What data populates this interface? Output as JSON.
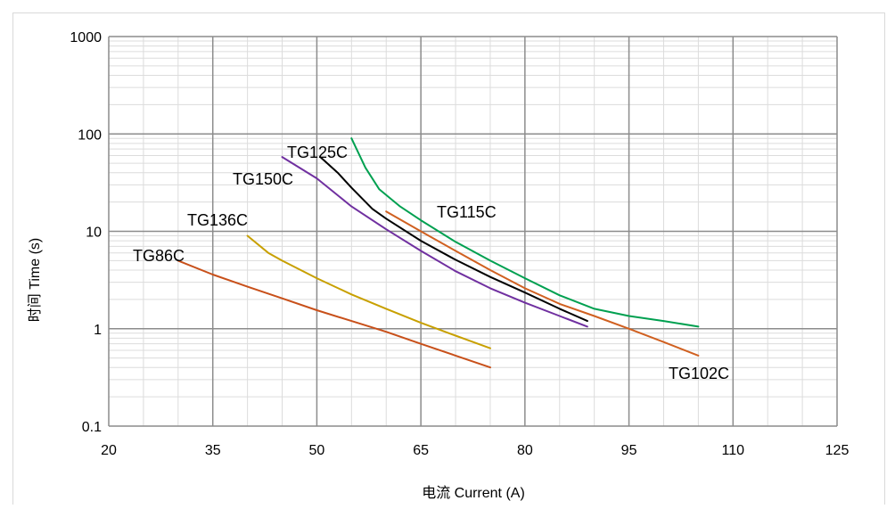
{
  "chart_data": {
    "type": "line",
    "title": "",
    "xlabel": "电流 Current (A)",
    "ylabel": "时间  Time (s)",
    "xlim": [
      20,
      125
    ],
    "ylim": [
      0.1,
      1000
    ],
    "yscale": "log",
    "grid": true,
    "x_ticks": [
      "20",
      "35",
      "50",
      "65",
      "80",
      "95",
      "110",
      "125"
    ],
    "y_ticks": [
      "0.1",
      "1",
      "10",
      "100",
      "1000"
    ],
    "colors": {
      "TG86C": "#c8501a",
      "TG136C": "#c8a000",
      "TG150C": "#7030a0",
      "TG125C": "#000000",
      "TG115C": "#00a050",
      "TG102C": "#d06020"
    },
    "series": [
      {
        "name": "TG86C",
        "x": [
          30,
          35,
          40,
          45,
          50,
          55,
          60,
          65,
          70,
          75
        ],
        "y": [
          5.0,
          3.6,
          2.7,
          2.05,
          1.55,
          1.2,
          0.93,
          0.7,
          0.53,
          0.4
        ]
      },
      {
        "name": "TG136C",
        "x": [
          40,
          43,
          45,
          50,
          55,
          60,
          65,
          70,
          75
        ],
        "y": [
          9.0,
          6.0,
          5.0,
          3.3,
          2.25,
          1.6,
          1.15,
          0.85,
          0.63
        ]
      },
      {
        "name": "TG150C",
        "x": [
          45,
          50,
          55,
          60,
          65,
          70,
          75,
          80,
          85,
          89
        ],
        "y": [
          58,
          35,
          18,
          10.5,
          6.3,
          3.9,
          2.6,
          1.85,
          1.35,
          1.05
        ]
      },
      {
        "name": "TG125C",
        "x": [
          50.5,
          53,
          55,
          58,
          60,
          65,
          70,
          75,
          80,
          85,
          89
        ],
        "y": [
          58,
          40,
          28,
          17,
          13.5,
          8.0,
          5.1,
          3.4,
          2.35,
          1.6,
          1.2
        ]
      },
      {
        "name": "TG115C",
        "x": [
          55,
          57,
          59,
          62,
          65,
          70,
          75,
          80,
          85,
          90,
          95,
          100,
          105
        ],
        "y": [
          90,
          45,
          27,
          18,
          13,
          7.8,
          5.0,
          3.3,
          2.2,
          1.6,
          1.35,
          1.2,
          1.05
        ]
      },
      {
        "name": "TG102C",
        "x": [
          60,
          65,
          70,
          75,
          80,
          85,
          90,
          95,
          100,
          105
        ],
        "y": [
          16,
          10,
          6.3,
          4.0,
          2.6,
          1.8,
          1.35,
          1.0,
          0.73,
          0.53
        ]
      }
    ]
  }
}
